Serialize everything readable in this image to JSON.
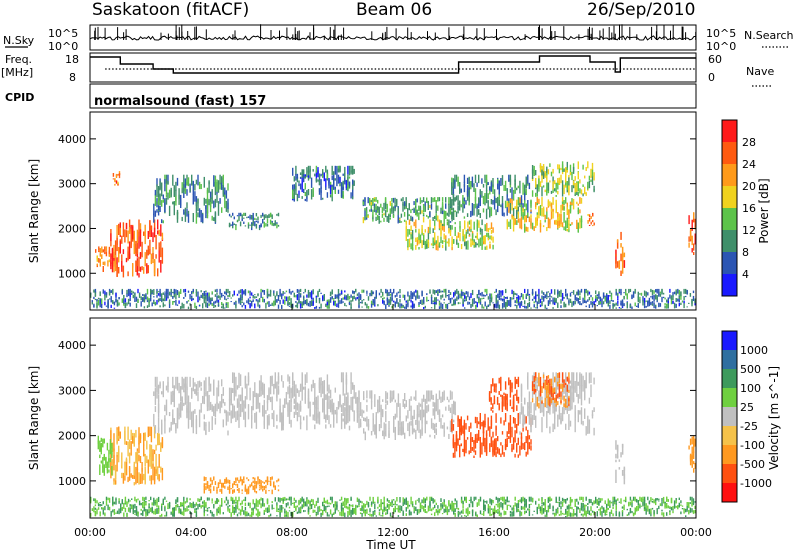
{
  "header": {
    "station": "Saskatoon (fitACF)",
    "beam": "Beam 06",
    "date": "26/Sep/2010"
  },
  "top_panels": {
    "nsky_label": "N.Sky",
    "nsky_ticks": [
      "10^5",
      "10^0"
    ],
    "nsearch_label": "N.Search",
    "freq_label_1": "Freq.",
    "freq_label_2": "[MHz]",
    "freq_ticks": [
      "18",
      "8"
    ],
    "nave_ticks": [
      "60",
      "0"
    ],
    "nave_label": "Nave",
    "cpid_label": "CPID",
    "cpid_value": "normalsound (fast) 157"
  },
  "axes": {
    "x_ticks": [
      "00:00",
      "04:00",
      "08:00",
      "12:00",
      "16:00",
      "20:00",
      "00:00"
    ],
    "x_label": "Time UT",
    "y_label": "Slant Range [km]",
    "y_ticks": [
      "1000",
      "2000",
      "3000",
      "4000"
    ]
  },
  "power_colorbar": {
    "label": "Power [dB]",
    "ticks": [
      "4",
      "8",
      "12",
      "16",
      "20",
      "24",
      "28"
    ],
    "colors": [
      "#1a1aff",
      "#2b55b3",
      "#3f8f6a",
      "#5cc34a",
      "#f0d21e",
      "#ff9a1a",
      "#ff5a10",
      "#ff1a1a"
    ]
  },
  "velocity_colorbar": {
    "label": "Velocity [m s^-1]",
    "ticks": [
      "1000",
      "500",
      "100",
      "25",
      "-25",
      "-100",
      "-500",
      "-1000"
    ],
    "colors": [
      "#1a1aff",
      "#2f6fa0",
      "#3d9a5c",
      "#6fd040",
      "#c0c0c0",
      "#f5c24a",
      "#ff9920",
      "#ff5010",
      "#ff1010"
    ]
  },
  "chart_data": [
    {
      "type": "heatmap",
      "title": "Power",
      "xlabel": "Time UT",
      "ylabel": "Slant Range [km]",
      "xlim": [
        0,
        24
      ],
      "ylim": [
        180,
        4600
      ],
      "colorbar_range": [
        0,
        32
      ],
      "regions": [
        {
          "t0": 0.8,
          "t1": 2.9,
          "r0": 900,
          "r1": 2200,
          "level": 26
        },
        {
          "t0": 0.2,
          "t1": 0.8,
          "r0": 1000,
          "r1": 1600,
          "level": 22
        },
        {
          "t0": 0.9,
          "t1": 1.2,
          "r0": 2950,
          "r1": 3300,
          "level": 24
        },
        {
          "t0": 2.5,
          "t1": 5.5,
          "r0": 2100,
          "r1": 3200,
          "level": 10
        },
        {
          "t0": 5.5,
          "t1": 7.5,
          "r0": 1950,
          "r1": 2350,
          "level": 9
        },
        {
          "t0": 8.0,
          "t1": 10.5,
          "r0": 2600,
          "r1": 3400,
          "level": 8
        },
        {
          "t0": 10.8,
          "t1": 14.5,
          "r0": 2100,
          "r1": 2700,
          "level": 12
        },
        {
          "t0": 12.5,
          "t1": 16.0,
          "r0": 1500,
          "r1": 2200,
          "level": 16
        },
        {
          "t0": 14.3,
          "t1": 17.5,
          "r0": 2200,
          "r1": 3200,
          "level": 10
        },
        {
          "t0": 16.5,
          "t1": 19.5,
          "r0": 1900,
          "r1": 2700,
          "level": 18
        },
        {
          "t0": 17.5,
          "t1": 20.0,
          "r0": 2700,
          "r1": 3500,
          "level": 15
        },
        {
          "t0": 19.7,
          "t1": 20.0,
          "r0": 2050,
          "r1": 2350,
          "level": 24
        },
        {
          "t0": 20.8,
          "t1": 21.2,
          "r0": 900,
          "r1": 2000,
          "level": 24
        },
        {
          "t0": 23.7,
          "t1": 24.0,
          "r0": 1400,
          "r1": 2400,
          "level": 26
        },
        {
          "t0": 0.0,
          "t1": 24.0,
          "r0": 200,
          "r1": 650,
          "level": 8
        }
      ]
    },
    {
      "type": "heatmap",
      "title": "Velocity",
      "xlabel": "Time UT",
      "ylabel": "Slant Range [km]",
      "xlim": [
        0,
        24
      ],
      "ylim": [
        180,
        4600
      ],
      "colorbar_range": [
        -1000,
        1000
      ],
      "regions": [
        {
          "t0": 0.8,
          "t1": 2.9,
          "r0": 900,
          "r1": 2200,
          "level": -60
        },
        {
          "t0": 0.3,
          "t1": 0.9,
          "r0": 1100,
          "r1": 2000,
          "level": 40
        },
        {
          "t0": 2.5,
          "t1": 5.5,
          "r0": 2000,
          "r1": 3300,
          "level": 0
        },
        {
          "t0": 5.5,
          "t1": 10.5,
          "r0": 2100,
          "r1": 3400,
          "level": 0
        },
        {
          "t0": 10.5,
          "t1": 14.5,
          "r0": 1900,
          "r1": 3000,
          "level": 5
        },
        {
          "t0": 14.3,
          "t1": 17.5,
          "r0": 1500,
          "r1": 2500,
          "level": -350
        },
        {
          "t0": 15.8,
          "t1": 17.0,
          "r0": 2500,
          "r1": 3300,
          "level": -400
        },
        {
          "t0": 17.0,
          "t1": 20.0,
          "r0": 2000,
          "r1": 3400,
          "level": 0
        },
        {
          "t0": 17.5,
          "t1": 19.0,
          "r0": 2600,
          "r1": 3400,
          "level": -300
        },
        {
          "t0": 20.8,
          "t1": 21.2,
          "r0": 900,
          "r1": 1900,
          "level": 0
        },
        {
          "t0": 23.7,
          "t1": 24.0,
          "r0": 1100,
          "r1": 2000,
          "level": -120
        },
        {
          "t0": 0.0,
          "t1": 24.0,
          "r0": 200,
          "r1": 650,
          "level": 60
        },
        {
          "t0": 4.5,
          "t1": 7.5,
          "r0": 700,
          "r1": 1100,
          "level": -80
        }
      ]
    }
  ]
}
